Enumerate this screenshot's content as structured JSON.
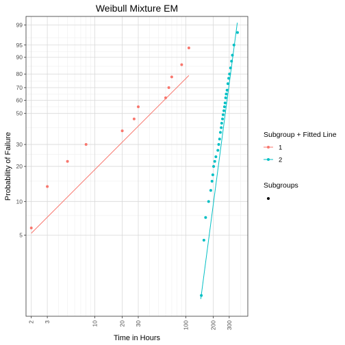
{
  "chart_data": {
    "type": "scatter",
    "title": "Weibull Mixture EM",
    "xlabel": "Time in Hours",
    "ylabel": "Probability of Failure",
    "x_scale": "log",
    "y_scale": "weibull-probability",
    "xlim": [
      1.75,
      480
    ],
    "ylim": [
      0.9,
      99.6
    ],
    "x_ticks": [
      2,
      3,
      10,
      20,
      30,
      100,
      200,
      300
    ],
    "x_minor_ticks": [
      4,
      5,
      6,
      7,
      8,
      9,
      40,
      50,
      60,
      70,
      80,
      90,
      400
    ],
    "y_ticks": [
      5,
      10,
      20,
      30,
      50,
      60,
      70,
      80,
      90,
      95,
      99
    ],
    "y_minor_ticks": [
      7.5,
      15,
      25,
      40,
      55,
      65,
      75,
      85,
      92.5,
      97
    ],
    "grid": true,
    "legend_position": "right",
    "legend": {
      "title": "Subgroup + Fitted Line",
      "entries": [
        {
          "label": "1",
          "color": "#F8766D"
        },
        {
          "label": "2",
          "color": "#00BFC4"
        }
      ],
      "title2": "Subgroups"
    },
    "series": [
      {
        "name": "1",
        "color": "#F8766D",
        "points": [
          [
            2,
            5.8
          ],
          [
            3,
            13.5
          ],
          [
            5,
            22
          ],
          [
            8,
            30
          ],
          [
            20,
            38
          ],
          [
            27,
            46
          ],
          [
            30,
            55
          ],
          [
            60,
            62
          ],
          [
            65,
            70
          ],
          [
            70,
            78
          ],
          [
            90,
            86
          ],
          [
            108,
            94
          ]
        ],
        "line": [
          [
            2,
            5.2
          ],
          [
            108,
            79
          ]
        ]
      },
      {
        "name": "2",
        "color": "#00BFC4",
        "points": [
          [
            148,
            1.4
          ],
          [
            158,
            4.5
          ],
          [
            165,
            7.2
          ],
          [
            178,
            10
          ],
          [
            188,
            12.5
          ],
          [
            194,
            15
          ],
          [
            198,
            17
          ],
          [
            202,
            20
          ],
          [
            208,
            22
          ],
          [
            214,
            24
          ],
          [
            225,
            27
          ],
          [
            230,
            30
          ],
          [
            235,
            33
          ],
          [
            240,
            37
          ],
          [
            245,
            40
          ],
          [
            248,
            43
          ],
          [
            253,
            46
          ],
          [
            257,
            49
          ],
          [
            262,
            52
          ],
          [
            266,
            55
          ],
          [
            270,
            58
          ],
          [
            274,
            62
          ],
          [
            278,
            65
          ],
          [
            284,
            68
          ],
          [
            290,
            73
          ],
          [
            296,
            77
          ],
          [
            302,
            80
          ],
          [
            310,
            84
          ],
          [
            318,
            88
          ],
          [
            325,
            91
          ],
          [
            338,
            95
          ],
          [
            370,
            98
          ]
        ],
        "line": [
          [
            146,
            1.3
          ],
          [
            368,
            99.2
          ]
        ]
      }
    ]
  }
}
